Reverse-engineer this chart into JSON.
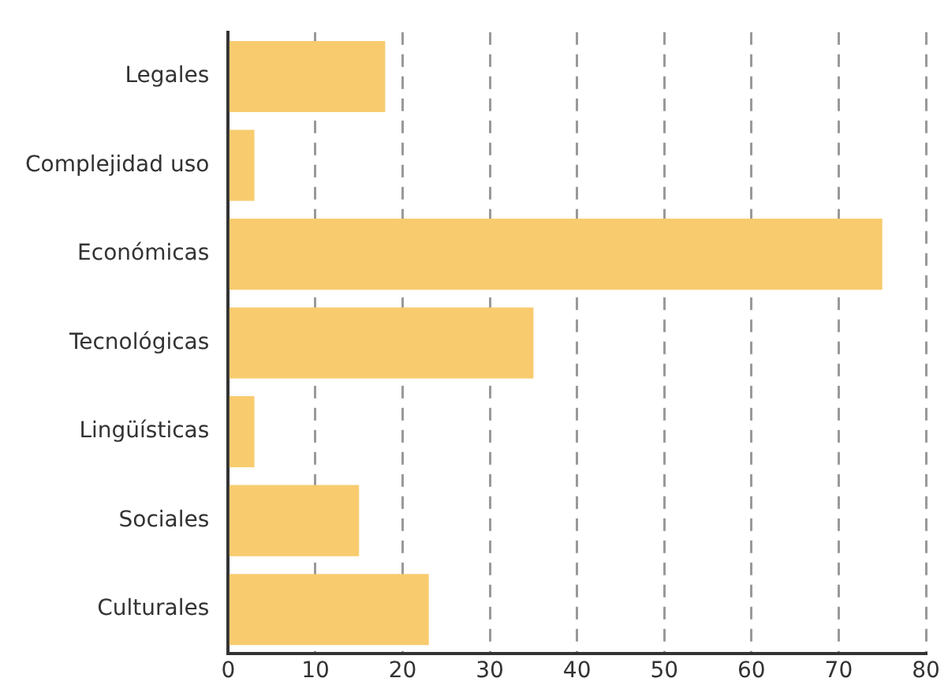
{
  "chart_data": {
    "type": "bar",
    "orientation": "horizontal",
    "categories": [
      "Legales",
      "Complejidad uso",
      "Económicas",
      "Tecnológicas",
      "Lingüísticas",
      "Sociales",
      "Culturales"
    ],
    "values": [
      18,
      3,
      75,
      35,
      3,
      15,
      23
    ],
    "color": "#f8cb6e",
    "xlim": [
      0,
      80
    ],
    "xticks": [
      0,
      10,
      20,
      30,
      40,
      50,
      60,
      70,
      80
    ],
    "grid": "x",
    "legend": false
  }
}
